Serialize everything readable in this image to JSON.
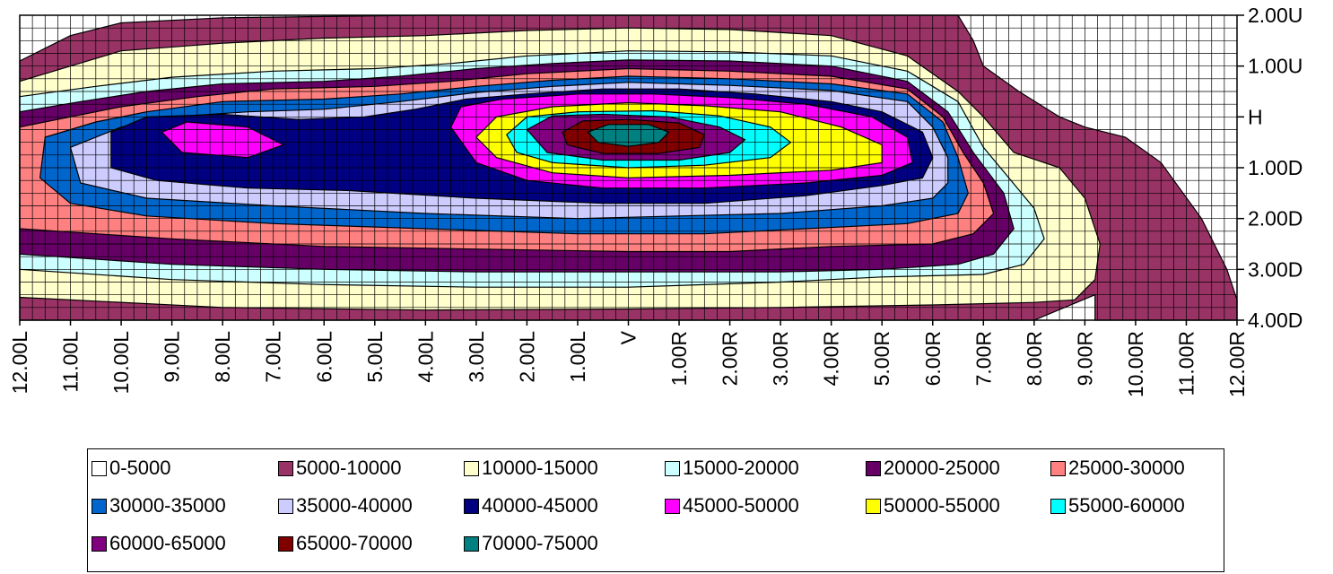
{
  "chart_data": {
    "type": "heatmap",
    "subtype": "filled-contour",
    "title": "",
    "xlabel": "",
    "ylabel": "",
    "x_ticks": [
      "12.00L",
      "11.00L",
      "10.00L",
      "9.00L",
      "8.00L",
      "7.00L",
      "6.00L",
      "5.00L",
      "4.00L",
      "3.00L",
      "2.00L",
      "1.00L",
      "V",
      "1.00R",
      "2.00R",
      "3.00R",
      "4.00R",
      "5.00R",
      "6.00R",
      "7.00R",
      "8.00R",
      "9.00R",
      "10.00R",
      "11.00R",
      "12.00R"
    ],
    "x_values": [
      -12,
      -11,
      -10,
      -9,
      -8,
      -7,
      -6,
      -5,
      -4,
      -3,
      -2,
      -1,
      0,
      1,
      2,
      3,
      4,
      5,
      6,
      7,
      8,
      9,
      10,
      11,
      12
    ],
    "y_ticks": [
      "2.00U",
      "1.00U",
      "H",
      "1.00D",
      "2.00D",
      "3.00D",
      "4.00D"
    ],
    "y_values": [
      2,
      1,
      0,
      -1,
      -2,
      -3,
      -4
    ],
    "xlim": [
      -12,
      12
    ],
    "ylim": [
      -4,
      2
    ],
    "grid": true,
    "grid_step": 0.25,
    "peak": {
      "x": -0.8,
      "y": -0.3,
      "band": "70000-75000"
    },
    "legend_position": "bottom",
    "legend": [
      {
        "label": "0-5000",
        "color": "#FFFFFF"
      },
      {
        "label": "5000-10000",
        "color": "#993366"
      },
      {
        "label": "10000-15000",
        "color": "#FFFFCC"
      },
      {
        "label": "15000-20000",
        "color": "#CCFFFF"
      },
      {
        "label": "20000-25000",
        "color": "#660066"
      },
      {
        "label": "25000-30000",
        "color": "#FF8080"
      },
      {
        "label": "30000-35000",
        "color": "#0066CC"
      },
      {
        "label": "35000-40000",
        "color": "#CCCCFF"
      },
      {
        "label": "40000-45000",
        "color": "#000080"
      },
      {
        "label": "45000-50000",
        "color": "#FF00FF"
      },
      {
        "label": "50000-55000",
        "color": "#FFFF00"
      },
      {
        "label": "55000-60000",
        "color": "#00FFFF"
      },
      {
        "label": "60000-65000",
        "color": "#800080"
      },
      {
        "label": "65000-70000",
        "color": "#800000"
      },
      {
        "label": "70000-75000",
        "color": "#008080"
      }
    ],
    "contours": [
      {
        "band": "5000-10000",
        "points": [
          [
            -12,
            1.1
          ],
          [
            -11,
            1.6
          ],
          [
            -10,
            1.85
          ],
          [
            -8,
            1.95
          ],
          [
            -4,
            2
          ],
          [
            3,
            2
          ],
          [
            6.5,
            2
          ],
          [
            6.8,
            1.5
          ],
          [
            7,
            1
          ],
          [
            7.7,
            0.5
          ],
          [
            8.5,
            0
          ],
          [
            9,
            -0.2
          ],
          [
            9.8,
            -0.4
          ],
          [
            10.5,
            -0.9
          ],
          [
            11.3,
            -2
          ],
          [
            11.8,
            -3
          ],
          [
            12,
            -3.6
          ],
          [
            12,
            -4
          ],
          [
            9.2,
            -4
          ],
          [
            9.2,
            -3.5
          ],
          [
            8,
            -4
          ],
          [
            -12,
            -4
          ]
        ]
      },
      {
        "band": "10000-15000",
        "points": [
          [
            -12,
            0.7
          ],
          [
            -11,
            1
          ],
          [
            -10,
            1.3
          ],
          [
            -8,
            1.45
          ],
          [
            -6,
            1.55
          ],
          [
            -4,
            1.6
          ],
          [
            -2,
            1.7
          ],
          [
            0,
            1.75
          ],
          [
            2,
            1.72
          ],
          [
            4,
            1.6
          ],
          [
            5.5,
            1.2
          ],
          [
            6.5,
            0.5
          ],
          [
            7,
            0
          ],
          [
            7.6,
            -0.7
          ],
          [
            8.5,
            -1
          ],
          [
            9,
            -1.6
          ],
          [
            9.3,
            -2.5
          ],
          [
            9.2,
            -3.2
          ],
          [
            8.8,
            -3.6
          ],
          [
            8,
            -3.65
          ],
          [
            6,
            -3.7
          ],
          [
            3,
            -3.75
          ],
          [
            0,
            -3.78
          ],
          [
            -4,
            -3.8
          ],
          [
            -8,
            -3.75
          ],
          [
            -12,
            -3.55
          ]
        ]
      },
      {
        "band": "15000-20000",
        "points": [
          [
            -12,
            0.4
          ],
          [
            -10.5,
            0.6
          ],
          [
            -9,
            0.78
          ],
          [
            -7,
            0.9
          ],
          [
            -5,
            0.95
          ],
          [
            -3.5,
            1.05
          ],
          [
            -2,
            1.2
          ],
          [
            0,
            1.3
          ],
          [
            2,
            1.28
          ],
          [
            4,
            1.2
          ],
          [
            5.5,
            0.9
          ],
          [
            6.5,
            0.3
          ],
          [
            7,
            -0.6
          ],
          [
            7.5,
            -1.2
          ],
          [
            8,
            -1.8
          ],
          [
            8.2,
            -2.4
          ],
          [
            7.8,
            -2.9
          ],
          [
            7,
            -3.1
          ],
          [
            5,
            -3.15
          ],
          [
            3,
            -3.25
          ],
          [
            0,
            -3.35
          ],
          [
            -3,
            -3.35
          ],
          [
            -6,
            -3.3
          ],
          [
            -9,
            -3.2
          ],
          [
            -12,
            -3
          ]
        ]
      },
      {
        "band": "20000-25000",
        "points": [
          [
            -12,
            0.1
          ],
          [
            -10.8,
            0.3
          ],
          [
            -9.5,
            0.5
          ],
          [
            -8,
            0.65
          ],
          [
            -6,
            0.7
          ],
          [
            -4.5,
            0.8
          ],
          [
            -3,
            0.95
          ],
          [
            -1.5,
            1.05
          ],
          [
            0,
            1.12
          ],
          [
            2,
            1.1
          ],
          [
            4,
            1
          ],
          [
            5.5,
            0.7
          ],
          [
            6.3,
            0.1
          ],
          [
            6.8,
            -0.7
          ],
          [
            7.4,
            -1.5
          ],
          [
            7.6,
            -2.2
          ],
          [
            7.2,
            -2.7
          ],
          [
            6.5,
            -2.9
          ],
          [
            5,
            -3
          ],
          [
            3,
            -3.05
          ],
          [
            0,
            -3.05
          ],
          [
            -3,
            -3.05
          ],
          [
            -6,
            -3
          ],
          [
            -9,
            -2.9
          ],
          [
            -12,
            -2.7
          ]
        ]
      },
      {
        "band": "25000-30000",
        "points": [
          [
            -12,
            -0.2
          ],
          [
            -11,
            0
          ],
          [
            -10,
            0.2
          ],
          [
            -8.5,
            0.4
          ],
          [
            -7,
            0.55
          ],
          [
            -5,
            0.6
          ],
          [
            -3.5,
            0.7
          ],
          [
            -2,
            0.85
          ],
          [
            0,
            0.95
          ],
          [
            2,
            0.9
          ],
          [
            4,
            0.8
          ],
          [
            5.5,
            0.55
          ],
          [
            6.2,
            0
          ],
          [
            6.6,
            -0.7
          ],
          [
            7,
            -1.3
          ],
          [
            7.2,
            -1.9
          ],
          [
            6.8,
            -2.3
          ],
          [
            6,
            -2.5
          ],
          [
            4,
            -2.55
          ],
          [
            2,
            -2.65
          ],
          [
            0,
            -2.65
          ],
          [
            -3,
            -2.6
          ],
          [
            -6,
            -2.55
          ],
          [
            -9,
            -2.4
          ],
          [
            -12,
            -2.2
          ]
        ]
      },
      {
        "band": "30000-35000",
        "points": [
          [
            -11.5,
            -0.4
          ],
          [
            -10.5,
            -0.1
          ],
          [
            -9.5,
            0.1
          ],
          [
            -8,
            0.3
          ],
          [
            -6,
            0.35
          ],
          [
            -4.5,
            0.45
          ],
          [
            -3,
            0.6
          ],
          [
            -1.5,
            0.72
          ],
          [
            0,
            0.8
          ],
          [
            2,
            0.75
          ],
          [
            4,
            0.65
          ],
          [
            5.5,
            0.45
          ],
          [
            6.2,
            -0.1
          ],
          [
            6.5,
            -0.8
          ],
          [
            6.7,
            -1.5
          ],
          [
            6.5,
            -1.9
          ],
          [
            5.5,
            -2.1
          ],
          [
            3.5,
            -2.2
          ],
          [
            1.5,
            -2.3
          ],
          [
            -1,
            -2.3
          ],
          [
            -4,
            -2.2
          ],
          [
            -7,
            -2.1
          ],
          [
            -9.5,
            -1.95
          ],
          [
            -11,
            -1.7
          ],
          [
            -11.6,
            -1.2
          ]
        ]
      },
      {
        "band": "35000-40000",
        "points": [
          [
            -11,
            -0.6
          ],
          [
            -10,
            -0.2
          ],
          [
            -9,
            0
          ],
          [
            -7.5,
            0.1
          ],
          [
            -6,
            0.15
          ],
          [
            -4.5,
            0.3
          ],
          [
            -3,
            0.48
          ],
          [
            -1.5,
            0.6
          ],
          [
            0,
            0.68
          ],
          [
            2,
            0.62
          ],
          [
            4,
            0.52
          ],
          [
            5.5,
            0.3
          ],
          [
            6,
            -0.2
          ],
          [
            6.3,
            -0.8
          ],
          [
            6.3,
            -1.3
          ],
          [
            6,
            -1.6
          ],
          [
            5,
            -1.75
          ],
          [
            3,
            -1.9
          ],
          [
            1,
            -1.95
          ],
          [
            -1,
            -2
          ],
          [
            -4,
            -1.9
          ],
          [
            -7,
            -1.75
          ],
          [
            -9.5,
            -1.6
          ],
          [
            -10.8,
            -1.3
          ]
        ]
      },
      {
        "band": "40000-45000",
        "points": [
          [
            -10.2,
            -0.3
          ],
          [
            -9.5,
            0
          ],
          [
            -8,
            0.05
          ],
          [
            -6.5,
            -0.05
          ],
          [
            -5.2,
            0
          ],
          [
            -4.2,
            0.15
          ],
          [
            -3.2,
            0.35
          ],
          [
            -2,
            0.45
          ],
          [
            -0.5,
            0.55
          ],
          [
            1,
            0.55
          ],
          [
            2.5,
            0.45
          ],
          [
            4,
            0.3
          ],
          [
            5,
            0.1
          ],
          [
            5.8,
            -0.3
          ],
          [
            6,
            -0.8
          ],
          [
            5.8,
            -1.2
          ],
          [
            5,
            -1.35
          ],
          [
            3.5,
            -1.55
          ],
          [
            1.5,
            -1.7
          ],
          [
            -0.5,
            -1.7
          ],
          [
            -3,
            -1.6
          ],
          [
            -5.5,
            -1.45
          ],
          [
            -7.5,
            -1.4
          ],
          [
            -9.3,
            -1.25
          ],
          [
            -10.2,
            -1
          ]
        ]
      },
      {
        "band": "45000-50000",
        "points": [
          [
            -3.5,
            -0.2
          ],
          [
            -3.3,
            0.2
          ],
          [
            -2.5,
            0.35
          ],
          [
            -1,
            0.45
          ],
          [
            0.5,
            0.45
          ],
          [
            2,
            0.38
          ],
          [
            3.5,
            0.25
          ],
          [
            4.8,
            0
          ],
          [
            5.5,
            -0.4
          ],
          [
            5.6,
            -0.9
          ],
          [
            5,
            -1.15
          ],
          [
            3.5,
            -1.3
          ],
          [
            1.5,
            -1.4
          ],
          [
            -0.5,
            -1.4
          ],
          [
            -2,
            -1.25
          ],
          [
            -3,
            -0.9
          ]
        ]
      },
      {
        "band": "45000-50000",
        "points": [
          [
            -9.2,
            -0.3
          ],
          [
            -8.7,
            -0.1
          ],
          [
            -7.5,
            -0.2
          ],
          [
            -6.8,
            -0.55
          ],
          [
            -7.5,
            -0.8
          ],
          [
            -8.8,
            -0.7
          ]
        ]
      },
      {
        "band": "50000-55000",
        "points": [
          [
            -3,
            -0.4
          ],
          [
            -2.6,
            0
          ],
          [
            -1.5,
            0.2
          ],
          [
            0,
            0.28
          ],
          [
            1.5,
            0.22
          ],
          [
            3,
            0.1
          ],
          [
            4.2,
            -0.2
          ],
          [
            5,
            -0.55
          ],
          [
            5,
            -0.9
          ],
          [
            4,
            -1.05
          ],
          [
            2,
            -1.15
          ],
          [
            0,
            -1.2
          ],
          [
            -1.5,
            -1.1
          ],
          [
            -2.6,
            -0.8
          ]
        ]
      },
      {
        "band": "55000-60000",
        "points": [
          [
            -2.4,
            -0.35
          ],
          [
            -2,
            0
          ],
          [
            -1,
            0.1
          ],
          [
            0.5,
            0.12
          ],
          [
            1.8,
            0.02
          ],
          [
            2.8,
            -0.2
          ],
          [
            3.2,
            -0.5
          ],
          [
            2.8,
            -0.8
          ],
          [
            1.5,
            -0.95
          ],
          [
            0,
            -1
          ],
          [
            -1.5,
            -0.9
          ],
          [
            -2.2,
            -0.7
          ]
        ]
      },
      {
        "band": "60000-65000",
        "points": [
          [
            -2,
            -0.25
          ],
          [
            -1.5,
            0.02
          ],
          [
            -0.5,
            0.05
          ],
          [
            0.8,
            0
          ],
          [
            1.8,
            -0.2
          ],
          [
            2.3,
            -0.45
          ],
          [
            2,
            -0.7
          ],
          [
            1,
            -0.85
          ],
          [
            -0.5,
            -0.85
          ],
          [
            -1.6,
            -0.7
          ]
        ]
      },
      {
        "band": "65000-70000",
        "points": [
          [
            -1.3,
            -0.3
          ],
          [
            -0.9,
            -0.08
          ],
          [
            0,
            -0.05
          ],
          [
            1,
            -0.12
          ],
          [
            1.5,
            -0.35
          ],
          [
            1.4,
            -0.6
          ],
          [
            0.6,
            -0.72
          ],
          [
            -0.5,
            -0.72
          ],
          [
            -1.2,
            -0.55
          ]
        ]
      },
      {
        "band": "70000-75000",
        "points": [
          [
            -0.8,
            -0.3
          ],
          [
            -0.4,
            -0.15
          ],
          [
            0.4,
            -0.15
          ],
          [
            0.8,
            -0.3
          ],
          [
            0.6,
            -0.5
          ],
          [
            0,
            -0.58
          ],
          [
            -0.6,
            -0.5
          ]
        ]
      }
    ]
  }
}
